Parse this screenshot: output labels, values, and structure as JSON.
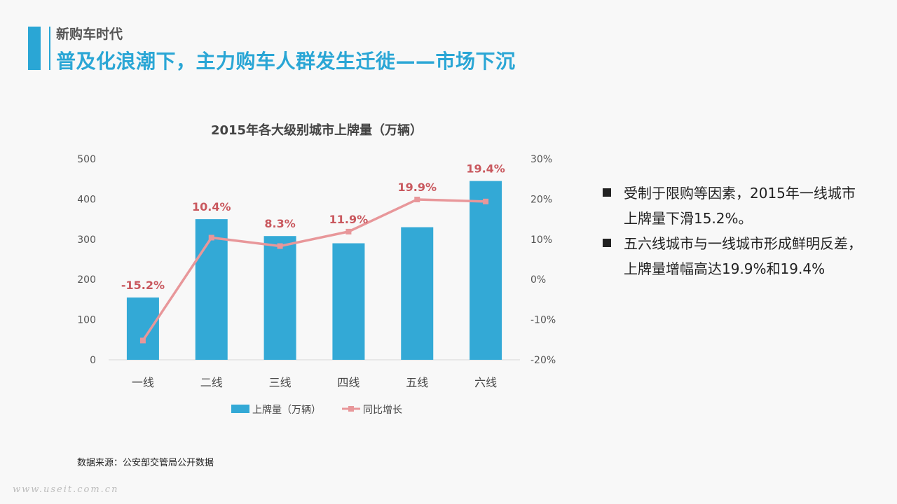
{
  "header": {
    "subtitle": "新购车时代",
    "title": "普及化浪潮下，主力购车人群发生迁徙——市场下沉"
  },
  "chart_data": {
    "type": "bar",
    "title": "2015年各大级别城市上牌量（万辆）",
    "categories": [
      "一线",
      "二线",
      "三线",
      "四线",
      "五线",
      "六线"
    ],
    "series": [
      {
        "name": "上牌量（万辆）",
        "type": "bar",
        "axis": "left",
        "color": "#33a9d6",
        "values": [
          155,
          350,
          308,
          290,
          330,
          445
        ]
      },
      {
        "name": "同比增长",
        "type": "line",
        "axis": "right",
        "color": "#e8979a",
        "values": [
          -15.2,
          10.4,
          8.3,
          11.9,
          19.9,
          19.4
        ],
        "labels": [
          "-15.2%",
          "10.4%",
          "8.3%",
          "11.9%",
          "19.9%",
          "19.4%"
        ]
      }
    ],
    "y_left": {
      "min": 0,
      "max": 500,
      "ticks": [
        "0",
        "100",
        "200",
        "300",
        "400",
        "500"
      ]
    },
    "y_right": {
      "min": -20,
      "max": 30,
      "ticks": [
        "-20%",
        "-10%",
        "0%",
        "10%",
        "20%",
        "30%"
      ]
    },
    "legend": "bottom",
    "label_color": "#c9585e"
  },
  "bullets": [
    "受制于限购等因素，2015年一线城市上牌量下滑15.2%。",
    "五六线城市与一线城市形成鲜明反差，上牌量增幅高达19.9%和19.4%"
  ],
  "source": "数据来源：公安部交管局公开数据",
  "watermark": "www.useit.com.cn"
}
